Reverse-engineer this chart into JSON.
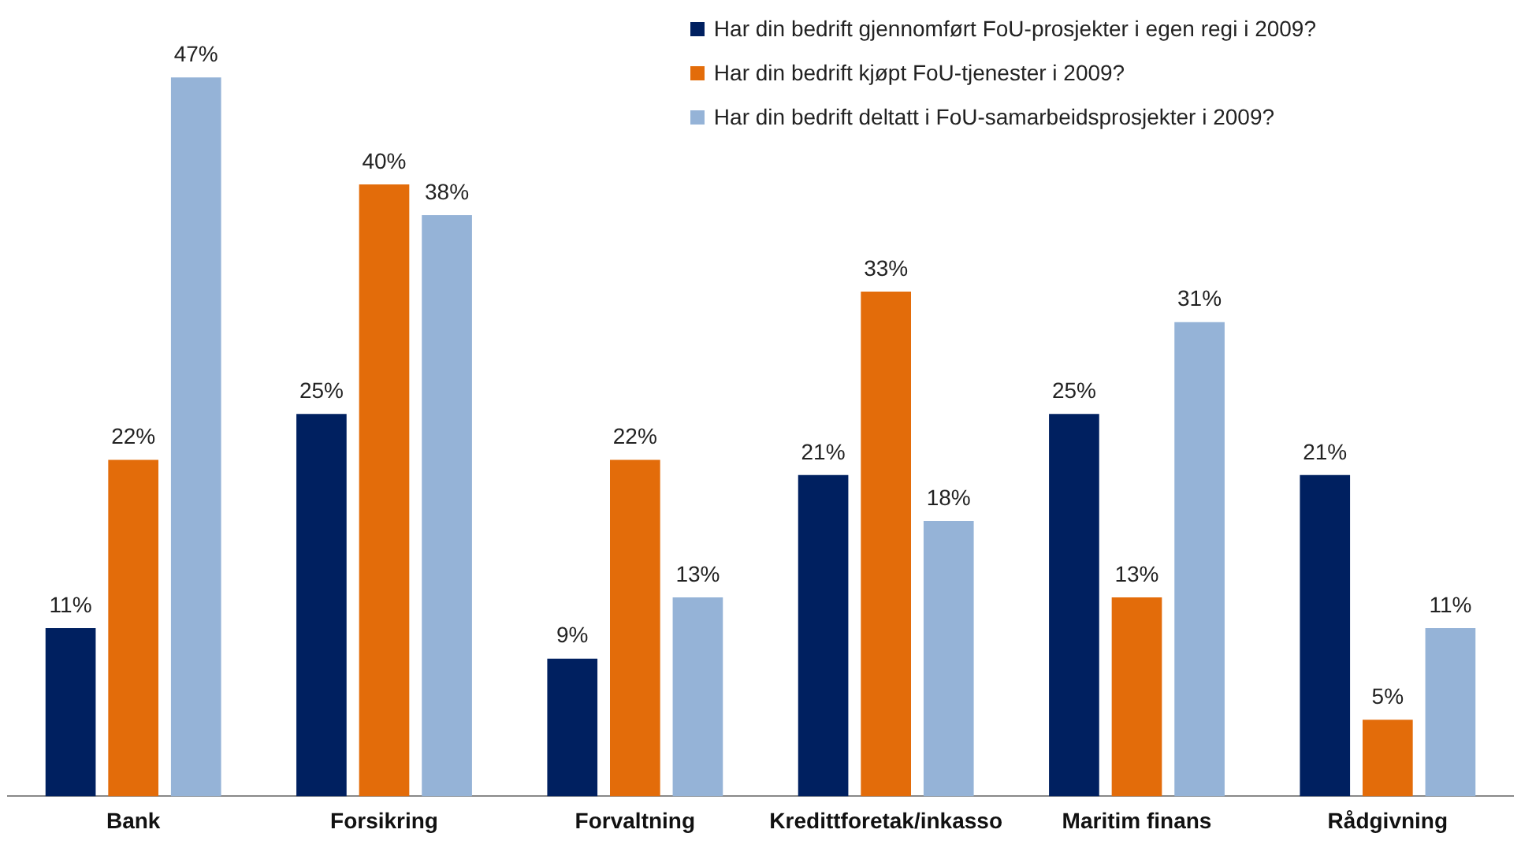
{
  "chart_data": {
    "type": "bar",
    "categories": [
      "Bank",
      "Forsikring",
      "Forvaltning",
      "Kredittforetak/inkasso",
      "Maritim finans",
      "Rådgivning"
    ],
    "series": [
      {
        "name": "Har din bedrift gjennomført FoU-prosjekter i egen regi i 2009?",
        "color": "#002060",
        "values": [
          11,
          25,
          9,
          21,
          25,
          21
        ],
        "value_labels": [
          "11%",
          "25%",
          "9%",
          "21%",
          "25%",
          "21%"
        ]
      },
      {
        "name": "Har din bedrift kjøpt FoU-tjenester i 2009?",
        "color": "#e36c0a",
        "values": [
          22,
          40,
          22,
          33,
          13,
          5
        ],
        "value_labels": [
          "22%",
          "40%",
          "22%",
          "33%",
          "13%",
          "5%"
        ]
      },
      {
        "name": "Har din bedrift deltatt i FoU-samarbeidsprosjekter i 2009?",
        "color": "#95b3d7",
        "values": [
          47,
          38,
          13,
          18,
          31,
          11
        ],
        "value_labels": [
          "47%",
          "38%",
          "13%",
          "18%",
          "31%",
          "11%"
        ]
      }
    ],
    "legend": "top right",
    "grid": false
  }
}
